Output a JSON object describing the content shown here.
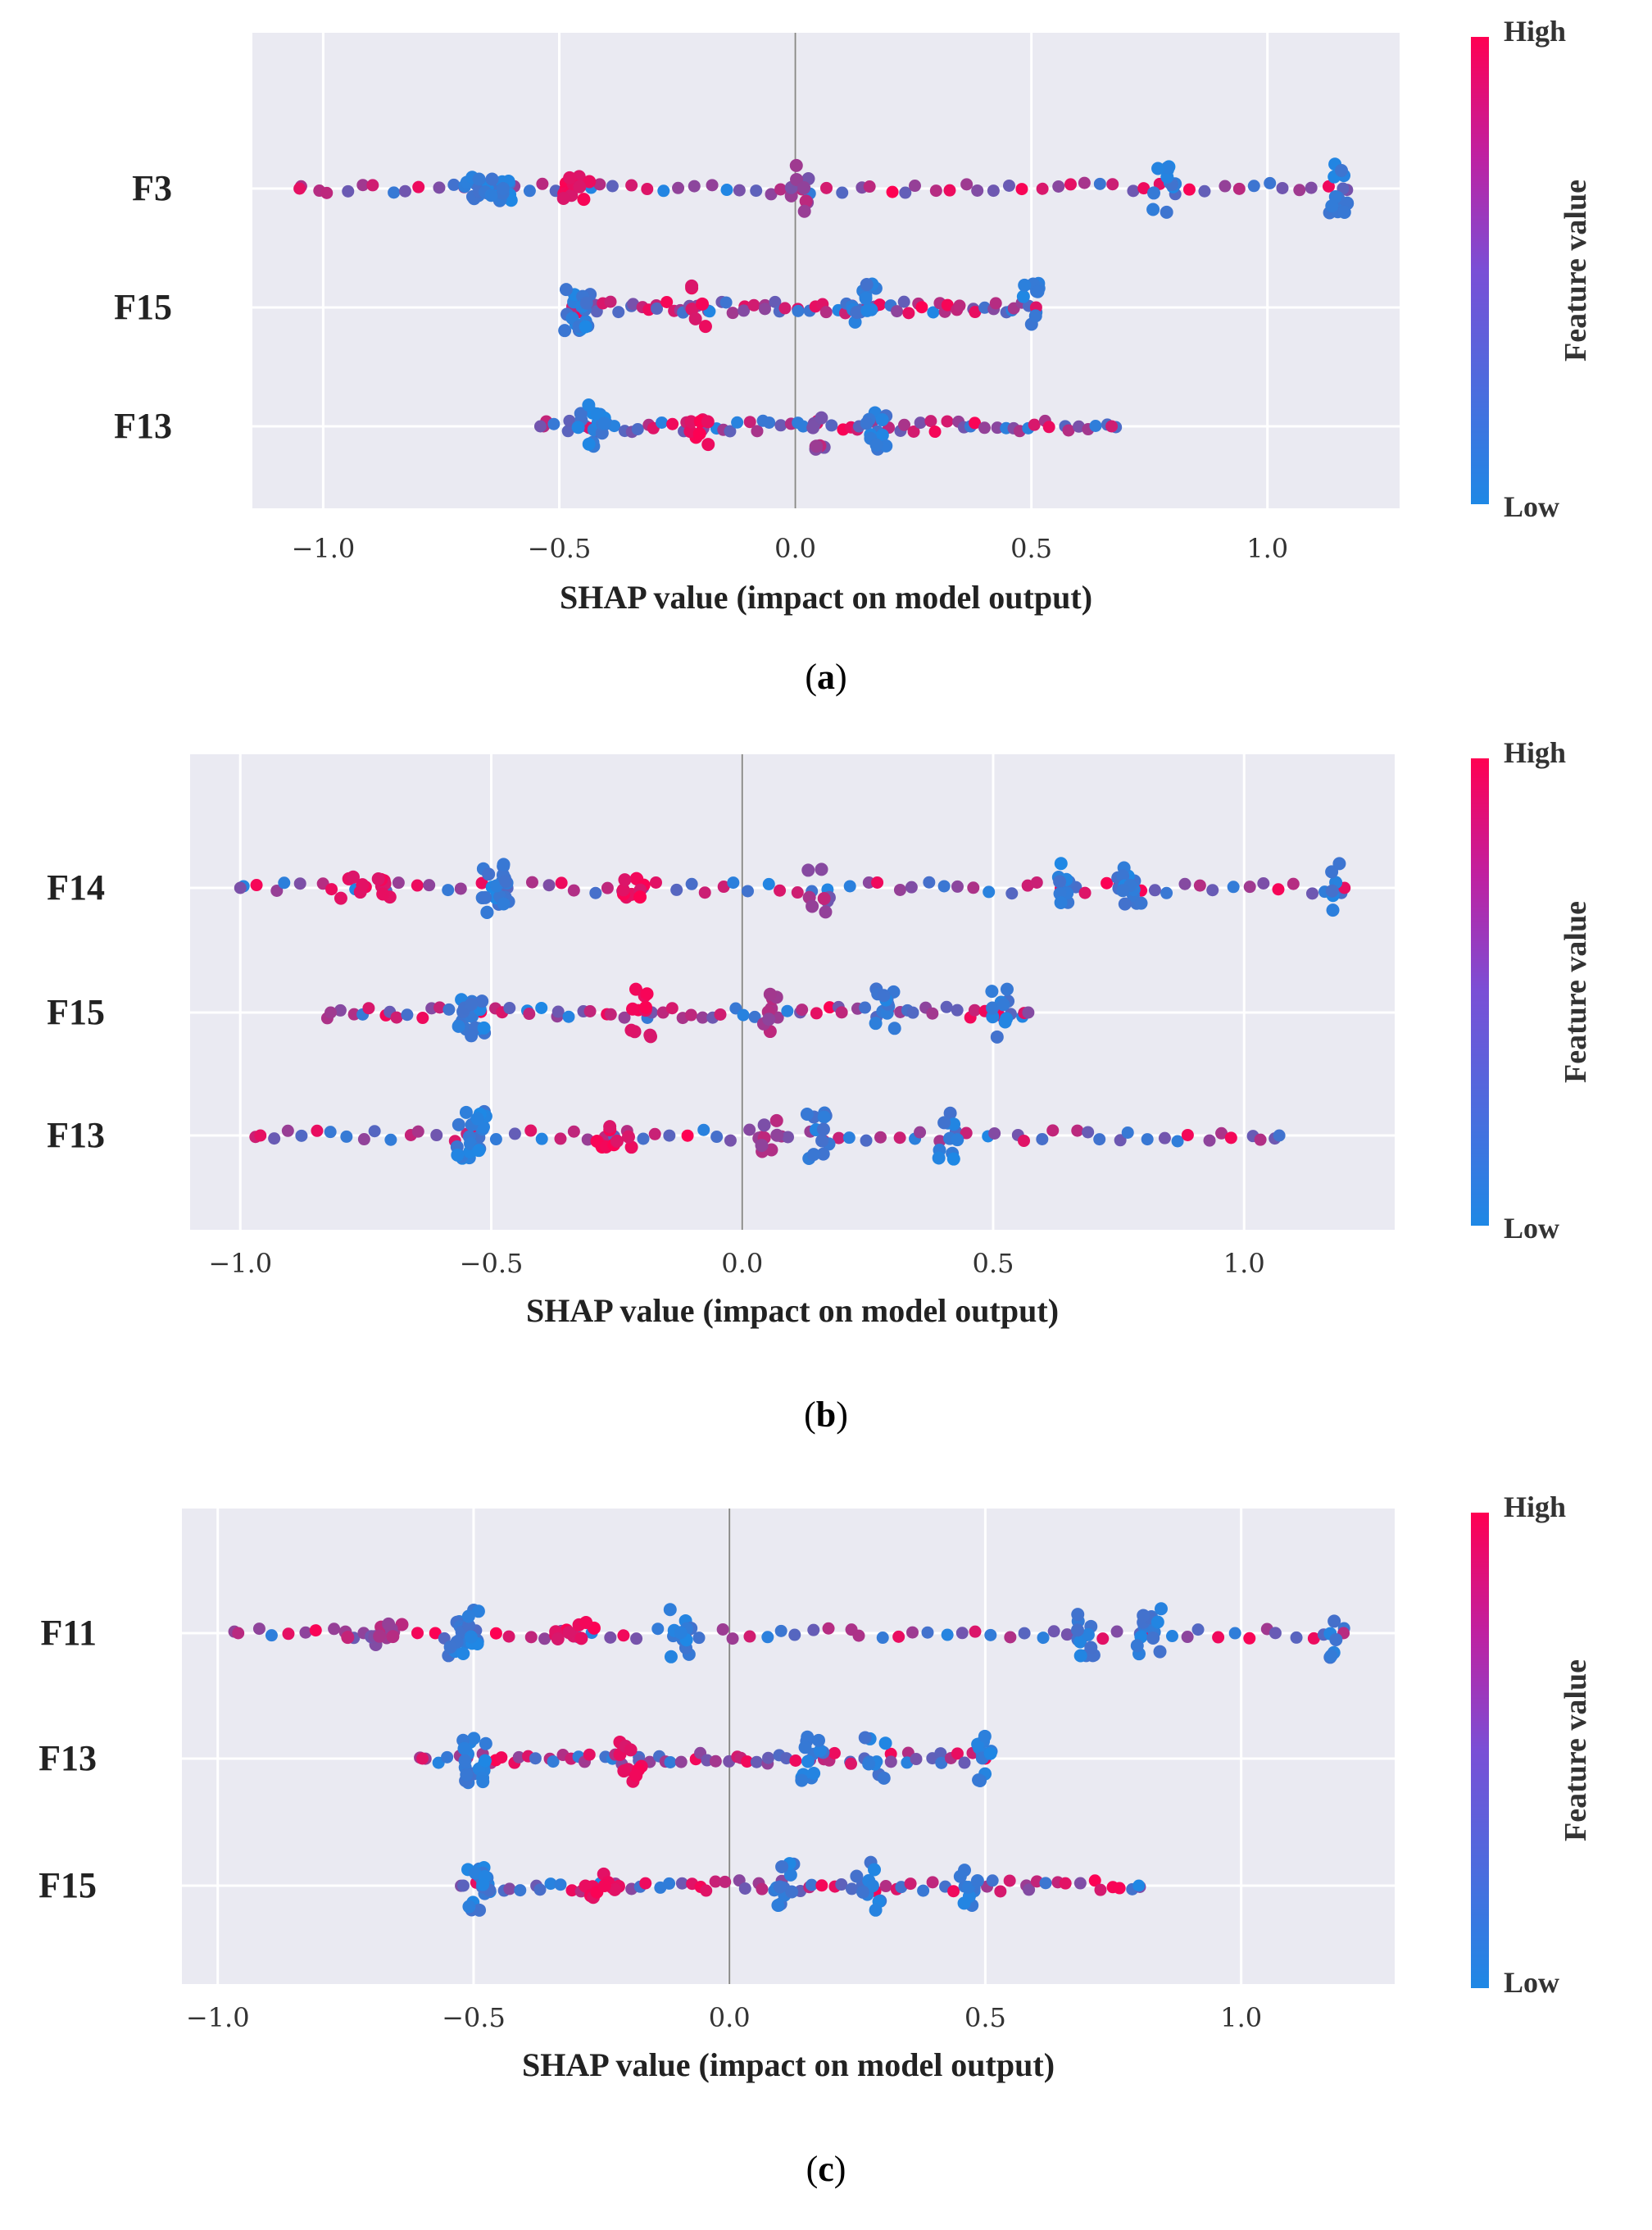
{
  "colors": {
    "low": "#1e88e5",
    "high": "#ff0052",
    "plot_bg": "#eaeaf2",
    "grid": "#ffffff"
  },
  "chart_data": [
    {
      "type": "scatter",
      "subtype": "shap-beeswarm",
      "caption_label": "a",
      "xlabel": "SHAP value (impact on model output)",
      "xlim": [
        -1.15,
        1.28
      ],
      "xticks": [
        -1.0,
        -0.5,
        0.0,
        0.5,
        1.0
      ],
      "xtick_labels": [
        "−1.0",
        "−0.5",
        "0.0",
        "0.5",
        "1.0"
      ],
      "colorbar": {
        "label": "Feature value",
        "high": "High",
        "low": "Low"
      },
      "features": [
        {
          "name": "F3",
          "min": -1.05,
          "max": 1.16,
          "clusters": [
            {
              "x": -0.65,
              "spread": 0.11,
              "color": "low",
              "n": 26
            },
            {
              "x": 1.15,
              "spread": 0.04,
              "color": "low",
              "n": 14
            },
            {
              "x": 0.78,
              "spread": 0.05,
              "color": "low",
              "n": 12
            },
            {
              "x": -0.45,
              "spread": 0.09,
              "color": "high",
              "n": 12
            },
            {
              "x": 0.0,
              "spread": 0.06,
              "color": "mid",
              "n": 10
            }
          ]
        },
        {
          "name": "F15",
          "min": -0.47,
          "max": 0.51,
          "clusters": [
            {
              "x": -0.46,
              "spread": 0.06,
              "color": "low",
              "n": 18
            },
            {
              "x": 0.15,
              "spread": 0.06,
              "color": "low",
              "n": 14
            },
            {
              "x": 0.5,
              "spread": 0.04,
              "color": "low",
              "n": 10
            },
            {
              "x": -0.2,
              "spread": 0.04,
              "color": "high",
              "n": 6
            }
          ]
        },
        {
          "name": "F13",
          "min": -0.54,
          "max": 0.67,
          "clusters": [
            {
              "x": -0.43,
              "spread": 0.06,
              "color": "low",
              "n": 18
            },
            {
              "x": 0.17,
              "spread": 0.05,
              "color": "low",
              "n": 12
            },
            {
              "x": -0.2,
              "spread": 0.05,
              "color": "high",
              "n": 8
            },
            {
              "x": 0.05,
              "spread": 0.03,
              "color": "mid",
              "n": 8
            }
          ]
        }
      ]
    },
    {
      "type": "scatter",
      "subtype": "shap-beeswarm",
      "caption_label": "b",
      "xlabel": "SHAP value (impact on model output)",
      "xlim": [
        -1.1,
        1.3
      ],
      "xticks": [
        -1.0,
        -0.5,
        0.0,
        0.5,
        1.0
      ],
      "xtick_labels": [
        "−1.0",
        "−0.5",
        "0.0",
        "0.5",
        "1.0"
      ],
      "colorbar": {
        "label": "Feature value",
        "high": "High",
        "low": "Low"
      },
      "features": [
        {
          "name": "F14",
          "min": -1.0,
          "max": 1.2,
          "clusters": [
            {
              "x": -0.49,
              "spread": 0.06,
              "color": "low",
              "n": 22
            },
            {
              "x": 0.77,
              "spread": 0.05,
              "color": "low",
              "n": 14
            },
            {
              "x": 0.64,
              "spread": 0.03,
              "color": "low",
              "n": 10
            },
            {
              "x": 1.18,
              "spread": 0.02,
              "color": "low",
              "n": 6
            },
            {
              "x": -0.75,
              "spread": 0.1,
              "color": "high",
              "n": 12
            },
            {
              "x": -0.2,
              "spread": 0.08,
              "color": "high",
              "n": 10
            },
            {
              "x": 0.15,
              "spread": 0.05,
              "color": "mid",
              "n": 8
            }
          ]
        },
        {
          "name": "F15",
          "min": -0.82,
          "max": 0.57,
          "clusters": [
            {
              "x": -0.54,
              "spread": 0.06,
              "color": "low",
              "n": 20
            },
            {
              "x": 0.29,
              "spread": 0.05,
              "color": "low",
              "n": 12
            },
            {
              "x": 0.51,
              "spread": 0.04,
              "color": "low",
              "n": 10
            },
            {
              "x": -0.2,
              "spread": 0.05,
              "color": "high",
              "n": 10
            },
            {
              "x": 0.05,
              "spread": 0.05,
              "color": "mid",
              "n": 8
            }
          ]
        },
        {
          "name": "F13",
          "min": -0.96,
          "max": 1.07,
          "clusters": [
            {
              "x": -0.54,
              "spread": 0.06,
              "color": "low",
              "n": 22
            },
            {
              "x": 0.15,
              "spread": 0.05,
              "color": "low",
              "n": 12
            },
            {
              "x": 0.41,
              "spread": 0.04,
              "color": "low",
              "n": 10
            },
            {
              "x": -0.25,
              "spread": 0.08,
              "color": "high",
              "n": 10
            },
            {
              "x": 0.05,
              "spread": 0.04,
              "color": "mid",
              "n": 8
            }
          ]
        }
      ]
    },
    {
      "type": "scatter",
      "subtype": "shap-beeswarm",
      "caption_label": "c",
      "xlabel": "SHAP value (impact on model output)",
      "xlim": [
        -1.07,
        1.3
      ],
      "xticks": [
        -1.0,
        -0.5,
        0.0,
        0.5,
        1.0
      ],
      "xtick_labels": [
        "−1.0",
        "−0.5",
        "0.0",
        "0.5",
        "1.0"
      ],
      "colorbar": {
        "label": "Feature value",
        "high": "High",
        "low": "Low"
      },
      "features": [
        {
          "name": "F11",
          "min": -0.96,
          "max": 1.2,
          "clusters": [
            {
              "x": -0.52,
              "spread": 0.06,
              "color": "low",
              "n": 22
            },
            {
              "x": 0.82,
              "spread": 0.05,
              "color": "low",
              "n": 14
            },
            {
              "x": 0.7,
              "spread": 0.04,
              "color": "low",
              "n": 12
            },
            {
              "x": 1.18,
              "spread": 0.02,
              "color": "low",
              "n": 6
            },
            {
              "x": -0.7,
              "spread": 0.12,
              "color": "mid",
              "n": 12
            },
            {
              "x": -0.09,
              "spread": 0.06,
              "color": "low",
              "n": 12
            },
            {
              "x": -0.3,
              "spread": 0.08,
              "color": "high",
              "n": 10
            }
          ]
        },
        {
          "name": "F13",
          "min": -0.6,
          "max": 0.5,
          "clusters": [
            {
              "x": -0.5,
              "spread": 0.05,
              "color": "low",
              "n": 20
            },
            {
              "x": 0.16,
              "spread": 0.05,
              "color": "low",
              "n": 12
            },
            {
              "x": 0.5,
              "spread": 0.03,
              "color": "low",
              "n": 10
            },
            {
              "x": -0.2,
              "spread": 0.06,
              "color": "high",
              "n": 10
            },
            {
              "x": 0.28,
              "spread": 0.05,
              "color": "low",
              "n": 8
            }
          ]
        },
        {
          "name": "F15",
          "min": -0.52,
          "max": 0.8,
          "clusters": [
            {
              "x": -0.49,
              "spread": 0.05,
              "color": "low",
              "n": 20
            },
            {
              "x": 0.11,
              "spread": 0.04,
              "color": "low",
              "n": 12
            },
            {
              "x": 0.27,
              "spread": 0.05,
              "color": "low",
              "n": 10
            },
            {
              "x": -0.25,
              "spread": 0.07,
              "color": "high",
              "n": 10
            },
            {
              "x": 0.47,
              "spread": 0.04,
              "color": "low",
              "n": 8
            }
          ]
        }
      ]
    }
  ]
}
